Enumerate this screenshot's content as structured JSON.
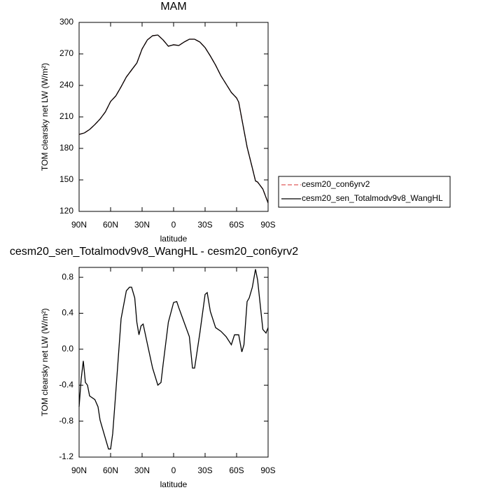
{
  "chart_data": [
    {
      "type": "line",
      "title": "MAM",
      "xlabel": "latitude",
      "ylabel": "TOM clearsky net LW (W/m²)",
      "x": [
        90,
        85,
        80,
        75,
        70,
        65,
        60,
        55,
        50,
        45,
        40,
        35,
        30,
        25,
        20,
        15,
        10,
        5,
        0,
        -5,
        -10,
        -15,
        -20,
        -25,
        -30,
        -35,
        -40,
        -45,
        -50,
        -55,
        -60,
        -62,
        -65,
        -70,
        -75,
        -78,
        -80,
        -85,
        -90
      ],
      "series": [
        {
          "name": "cesm20_con6yrv2",
          "color": "#e05a5a",
          "line_style": "dashed",
          "values": [
            193.3,
            194.7,
            198,
            202.7,
            208,
            214.7,
            224.7,
            230,
            238.7,
            248,
            254.7,
            261.3,
            274.7,
            283.3,
            287.3,
            288,
            283.3,
            277.3,
            278.7,
            278,
            281.3,
            284,
            284,
            281.3,
            276,
            268,
            259.3,
            249.3,
            241.3,
            233.3,
            228,
            224,
            208,
            181.3,
            161.3,
            149,
            148,
            141.3,
            128
          ]
        },
        {
          "name": "cesm20_sen_Totalmodv9v8_WangHL",
          "color": "#000000",
          "line_style": "solid",
          "values": [
            193.3,
            194.7,
            198,
            202.7,
            208,
            214.7,
            224.7,
            230,
            238.7,
            248,
            254.7,
            261.3,
            274.7,
            283.3,
            287.3,
            288,
            283.3,
            277.3,
            278.7,
            278,
            281.3,
            284,
            284,
            281.3,
            276,
            268,
            259.3,
            249.3,
            241.3,
            233.3,
            228,
            224,
            208,
            181.3,
            161.3,
            149,
            148,
            141.3,
            128
          ]
        }
      ],
      "xlim": [
        90,
        -90
      ],
      "xticks": [
        {
          "value": 90,
          "label": "90N"
        },
        {
          "value": 60,
          "label": "60N"
        },
        {
          "value": 30,
          "label": "30N"
        },
        {
          "value": 0,
          "label": "0"
        },
        {
          "value": -30,
          "label": "30S"
        },
        {
          "value": -60,
          "label": "60S"
        },
        {
          "value": -90,
          "label": "90S"
        }
      ],
      "ylim": [
        120,
        300
      ],
      "yticks": [
        120,
        150,
        180,
        210,
        240,
        270,
        300
      ],
      "legend": "right-outside"
    },
    {
      "type": "line",
      "title": "cesm20_sen_Totalmodv9v8_WangHL - cesm20_con6yrv2",
      "xlabel": "latitude",
      "ylabel": "TOM clearsky net LW (W/m²)",
      "x": [
        90,
        88,
        86,
        84,
        82,
        80,
        75,
        72,
        70,
        65,
        62,
        60,
        58,
        55,
        50,
        45,
        42,
        40,
        37,
        35,
        33,
        31,
        29,
        25,
        20,
        15,
        12,
        10,
        5,
        0,
        -3,
        -5,
        -10,
        -15,
        -18,
        -20,
        -25,
        -30,
        -32,
        -35,
        -40,
        -45,
        -50,
        -55,
        -58,
        -62,
        -65,
        -67,
        -70,
        -72,
        -75,
        -78,
        -80,
        -85,
        -88,
        -90
      ],
      "values": [
        -0.64,
        -0.33,
        -0.13,
        -0.37,
        -0.4,
        -0.52,
        -0.56,
        -0.64,
        -0.79,
        -0.99,
        -1.11,
        -1.11,
        -0.94,
        -0.47,
        0.34,
        0.65,
        0.69,
        0.69,
        0.57,
        0.3,
        0.16,
        0.26,
        0.28,
        0.06,
        -0.21,
        -0.4,
        -0.37,
        -0.17,
        0.3,
        0.52,
        0.53,
        0.46,
        0.3,
        0.14,
        -0.21,
        -0.21,
        0.18,
        0.61,
        0.63,
        0.42,
        0.24,
        0.2,
        0.14,
        0.05,
        0.16,
        0.16,
        -0.03,
        0.05,
        0.53,
        0.57,
        0.69,
        0.89,
        0.77,
        0.22,
        0.18,
        0.24
      ],
      "color": "#000000",
      "xlim": [
        90,
        -90
      ],
      "xticks": [
        {
          "value": 90,
          "label": "90N"
        },
        {
          "value": 60,
          "label": "60N"
        },
        {
          "value": 30,
          "label": "30N"
        },
        {
          "value": 0,
          "label": "0"
        },
        {
          "value": -30,
          "label": "30S"
        },
        {
          "value": -60,
          "label": "60S"
        },
        {
          "value": -90,
          "label": "90S"
        }
      ],
      "ylim": [
        -1.2,
        0.91
      ],
      "yticks": [
        -1.2,
        -0.8,
        -0.4,
        {
          "value": 0,
          "label": "0.0"
        },
        0.4,
        0.8
      ]
    }
  ]
}
